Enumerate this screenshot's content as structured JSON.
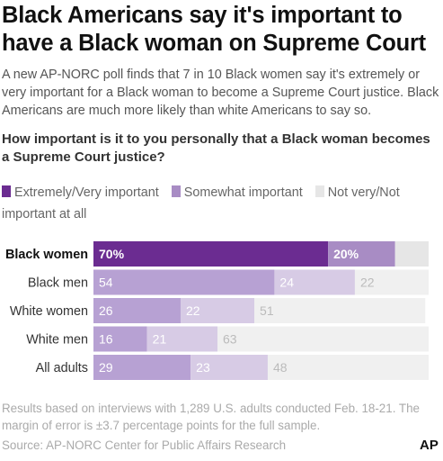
{
  "header": {
    "title": "Black Americans say it's important to have a Black woman on Supreme Court",
    "subtitle": "A new AP-NORC poll finds that 7 in 10 Black women say it's extremely or very important for a Black woman to become a Supreme Court justice. Black Americans are much more likely than white Americans to say so.",
    "question": "How important is it to you personally that a Black woman becomes a Supreme Court justice?"
  },
  "legend": {
    "items": [
      {
        "label": "Extremely/Very important",
        "color": "#6b2c91"
      },
      {
        "label": "Somewhat important",
        "color": "#a88cc4"
      },
      {
        "label": "Not very/Not important at all",
        "color": "#e6e6e6"
      }
    ]
  },
  "footer": {
    "note": "Results based on interviews with 1,289 U.S. adults conducted Feb. 18-21. The margin of error is ±3.7 percentage points for the full sample.",
    "source": "Source: AP-NORC Center for Public Affairs Research",
    "logo": "AP"
  },
  "chart_data": {
    "type": "bar",
    "orientation": "horizontal",
    "stacked": true,
    "xlim": [
      0,
      100
    ],
    "categories": [
      "Black women",
      "Black men",
      "White women",
      "White men",
      "All adults"
    ],
    "highlight_category": "Black women",
    "series": [
      {
        "name": "Extremely/Very important",
        "values": [
          70,
          54,
          26,
          16,
          29
        ],
        "labels": [
          "70%",
          "54",
          "26",
          "16",
          "29"
        ]
      },
      {
        "name": "Somewhat important",
        "values": [
          20,
          24,
          22,
          21,
          23
        ],
        "labels": [
          "20%",
          "24",
          "22",
          "21",
          "23"
        ]
      },
      {
        "name": "Not very/Not important at all",
        "values": [
          10,
          22,
          51,
          63,
          48
        ],
        "labels": [
          "",
          "22",
          "51",
          "63",
          "48"
        ]
      }
    ],
    "colors": {
      "highlight": [
        "#6b2c91",
        "#a88cc4",
        "#e6e6e6"
      ],
      "normal": [
        "#b7a1d3",
        "#d7cbe5",
        "#f0f0f0"
      ]
    }
  }
}
